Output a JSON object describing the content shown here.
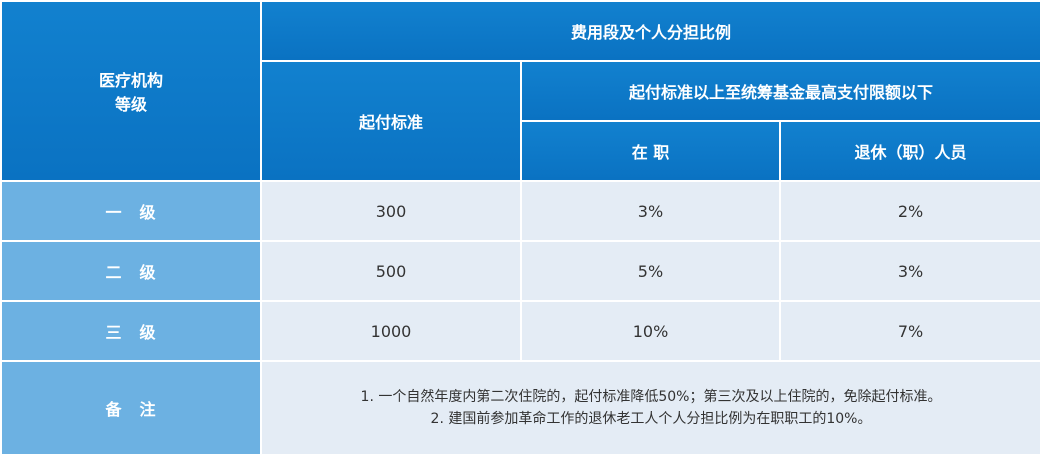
{
  "table": {
    "header": {
      "institution_label_line1": "医疗机构",
      "institution_label_line2": "等级",
      "cost_section_title": "费用段及个人分担比例",
      "deductible_label": "起付标准",
      "range_label": "起付标准以上至统筹基金最高支付限额以下",
      "employed_label": "在 职",
      "retired_label": "退休（职）人员"
    },
    "rows": [
      {
        "level_char1": "一",
        "level_char2": "级",
        "deductible": "300",
        "employed": "3%",
        "retired": "2%"
      },
      {
        "level_char1": "二",
        "level_char2": "级",
        "deductible": "500",
        "employed": "5%",
        "retired": "3%"
      },
      {
        "level_char1": "三",
        "level_char2": "级",
        "deductible": "1000",
        "employed": "10%",
        "retired": "7%"
      }
    ],
    "notes": {
      "label_char1": "备",
      "label_char2": "注",
      "line1": "1. 一个自然年度内第二次住院的，起付标准降低50%；第三次及以上住院的，免除起付标准。",
      "line2": "2. 建国前参加革命工作的退休老工人个人分担比例为在职职工的10%。"
    }
  },
  "colors": {
    "header_blue": "#0a78c8",
    "level_blue": "#6cb1e2",
    "cell_bg": "#e4ecf5",
    "text": "#333333"
  }
}
